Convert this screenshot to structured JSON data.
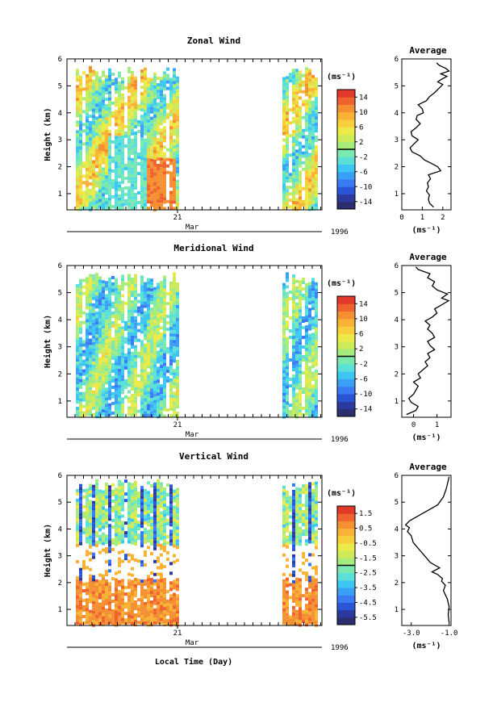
{
  "figure": {
    "xlabel": "Local Time (Day)",
    "month_label": "Mar",
    "year_label": "1996",
    "day_tick": "21",
    "unit_label": "(ms⁻¹)"
  },
  "chart_data": [
    {
      "type": "heatmap",
      "title": "Zonal Wind",
      "ylabel": "Height (km)",
      "ylim": [
        0.4,
        6
      ],
      "yticks": [
        "1",
        "2",
        "3",
        "4",
        "5",
        "6"
      ],
      "colorbar": {
        "labels": [
          "14",
          "10",
          "6",
          "2",
          "-2",
          "-6",
          "-10",
          "-14"
        ],
        "range": [
          -16,
          16
        ]
      }
    },
    {
      "type": "line",
      "title": "Average",
      "xlim": [
        0,
        2.4
      ],
      "xticks": [
        "0",
        "1",
        "2"
      ],
      "xlabel": "(ms⁻¹)",
      "ylim": [
        0.4,
        6
      ],
      "yticks": [
        "1",
        "2",
        "3",
        "4",
        "5",
        "6"
      ],
      "x": [
        1.55,
        1.35,
        1.3,
        1.35,
        1.2,
        1.3,
        1.25,
        1.4,
        1.3,
        1.9,
        1.75,
        1.45,
        1.1,
        0.9,
        0.5,
        0.4,
        0.6,
        0.8,
        0.5,
        0.45,
        0.7,
        0.9,
        0.7,
        0.75,
        1.05,
        1.0,
        0.8,
        1.2,
        1.35,
        1.6,
        1.8,
        2.0,
        1.75,
        1.95,
        2.2,
        1.9,
        2.3,
        2.15,
        1.85,
        1.7
      ],
      "y": [
        0.5,
        0.65,
        0.8,
        0.95,
        1.1,
        1.25,
        1.4,
        1.55,
        1.7,
        1.85,
        2.0,
        2.12,
        2.25,
        2.4,
        2.55,
        2.7,
        2.85,
        3.0,
        3.15,
        3.3,
        3.45,
        3.6,
        3.75,
        3.9,
        4.0,
        4.15,
        4.3,
        4.45,
        4.6,
        4.75,
        4.9,
        5.05,
        5.15,
        5.25,
        5.35,
        5.45,
        5.55,
        5.65,
        5.75,
        5.85
      ]
    },
    {
      "type": "heatmap",
      "title": "Meridional Wind",
      "ylabel": "Height (km)",
      "ylim": [
        0.4,
        6
      ],
      "yticks": [
        "1",
        "2",
        "3",
        "4",
        "5",
        "6"
      ],
      "colorbar": {
        "labels": [
          "14",
          "10",
          "6",
          "2",
          "-2",
          "-6",
          "-10",
          "-14"
        ],
        "range": [
          -16,
          16
        ]
      }
    },
    {
      "type": "line",
      "title": "Average",
      "xlim": [
        -0.5,
        1.6
      ],
      "xticks": [
        "0",
        "1"
      ],
      "xlabel": "(ms⁻¹)",
      "ylim": [
        0.4,
        6
      ],
      "yticks": [
        "1",
        "2",
        "3",
        "4",
        "5",
        "6"
      ],
      "x": [
        -0.3,
        0.1,
        0.2,
        -0.1,
        -0.2,
        0.0,
        0.1,
        0.2,
        0.0,
        0.3,
        0.2,
        0.4,
        0.6,
        0.5,
        0.7,
        0.6,
        0.9,
        0.7,
        0.6,
        0.9,
        0.8,
        0.6,
        0.7,
        0.5,
        0.8,
        1.0,
        0.9,
        1.1,
        1.3,
        1.5,
        1.2,
        1.45,
        1.0,
        0.8,
        0.9,
        0.6,
        0.7,
        0.2,
        0.1
      ],
      "y": [
        0.5,
        0.65,
        0.8,
        0.95,
        1.1,
        1.25,
        1.4,
        1.55,
        1.7,
        1.85,
        2.0,
        2.15,
        2.3,
        2.45,
        2.6,
        2.75,
        2.9,
        3.05,
        3.2,
        3.35,
        3.5,
        3.65,
        3.8,
        3.95,
        4.1,
        4.25,
        4.4,
        4.5,
        4.6,
        4.7,
        4.8,
        4.95,
        5.1,
        5.25,
        5.4,
        5.55,
        5.7,
        5.85,
        5.95
      ]
    },
    {
      "type": "heatmap",
      "title": "Vertical Wind",
      "ylabel": "Height (km)",
      "ylim": [
        0.4,
        6
      ],
      "yticks": [
        "1",
        "2",
        "3",
        "4",
        "5",
        "6"
      ],
      "colorbar": {
        "labels": [
          "1.5",
          "0.5",
          "-0.5",
          "-1.5",
          "-2.5",
          "-3.5",
          "-4.5",
          "-5.5"
        ],
        "range": [
          -6,
          2
        ]
      }
    },
    {
      "type": "line",
      "title": "Average",
      "xlim": [
        -3.5,
        -0.9
      ],
      "xticks": [
        "-3.0",
        "-1.0"
      ],
      "xlabel": "(ms⁻¹)",
      "ylim": [
        0.4,
        6
      ],
      "yticks": [
        "1",
        "2",
        "3",
        "4",
        "5",
        "6"
      ],
      "x": [
        -1.0,
        -1.05,
        -1.0,
        -1.1,
        -1.3,
        -1.2,
        -1.4,
        -1.35,
        -1.6,
        -1.9,
        -1.5,
        -2.0,
        -2.3,
        -2.6,
        -2.9,
        -3.0,
        -3.2,
        -3.1,
        -3.3,
        -3.1,
        -2.6,
        -2.1,
        -1.6,
        -1.3,
        -1.15,
        -1.05,
        -1.0
      ],
      "y": [
        0.5,
        0.8,
        1.1,
        1.4,
        1.7,
        1.9,
        2.05,
        2.15,
        2.3,
        2.4,
        2.55,
        2.75,
        3.0,
        3.25,
        3.5,
        3.75,
        3.9,
        4.05,
        4.15,
        4.3,
        4.5,
        4.7,
        4.9,
        5.2,
        5.5,
        5.8,
        5.95
      ]
    }
  ]
}
